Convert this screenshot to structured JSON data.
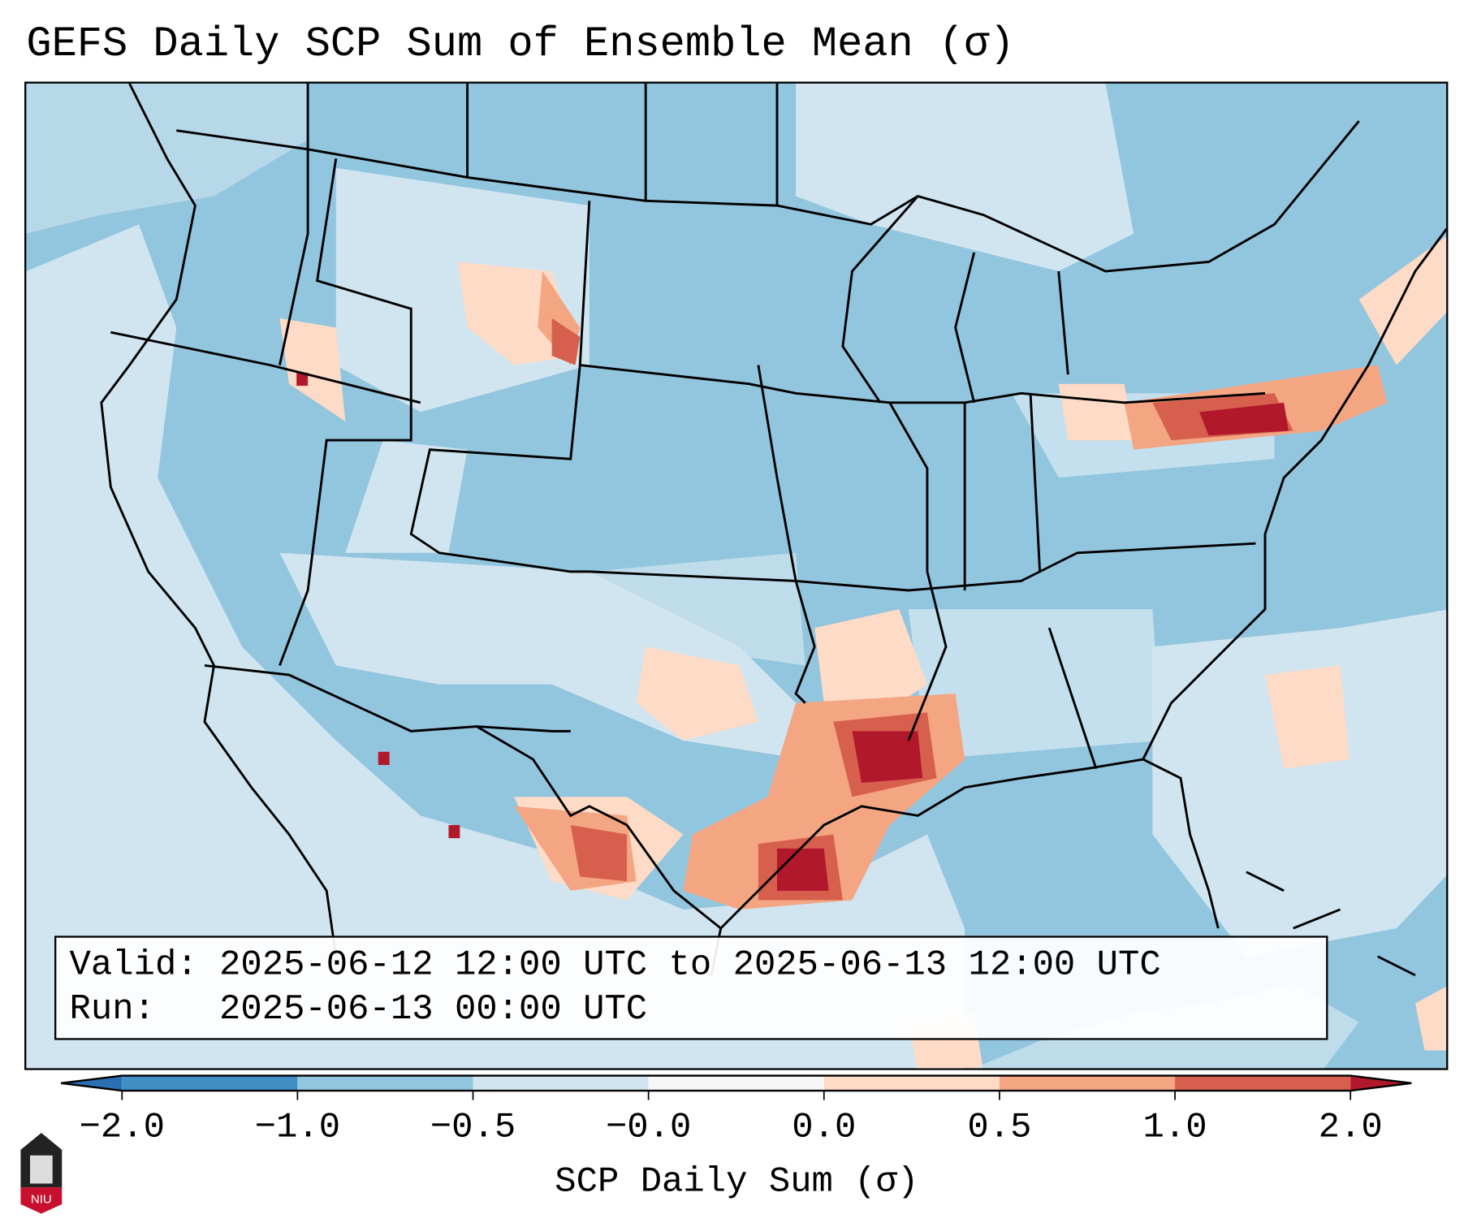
{
  "title": "GEFS Daily SCP Sum of Ensemble Mean (σ)",
  "info": {
    "valid_line": "Valid: 2025-06-12 12:00 UTC to 2025-06-13 12:00 UTC",
    "run_line": "Run:   2025-06-13 00:00 UTC"
  },
  "colorbar": {
    "label": "SCP Daily Sum (σ)",
    "ticks": [
      "−2.0",
      "−1.0",
      "−0.5",
      "−0.0",
      "0.0",
      "0.5",
      "1.0",
      "2.0"
    ],
    "colors": [
      "#2b6fb3",
      "#3f8fc5",
      "#92c5de",
      "#d1e5f0",
      "#f7f7f7",
      "#fddbc7",
      "#f4a582",
      "#d6604d",
      "#b2182b"
    ],
    "extend": "both"
  },
  "logo": {
    "text": "NIU"
  }
}
